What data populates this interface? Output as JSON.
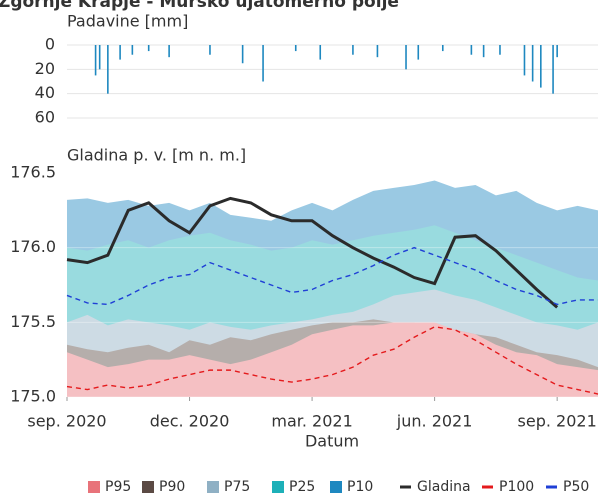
{
  "title": "Zgornje Krapje - Mursko ujatomerno polje",
  "chart_data": [
    {
      "type": "bar",
      "ylabel": "Padavine [mm]",
      "y_inverted": true,
      "ylim": [
        0,
        60
      ],
      "yticks": [
        0,
        20,
        40,
        60
      ],
      "xlim": [
        0,
        13
      ],
      "color": "#1e88c0",
      "x": [
        0.7,
        0.8,
        1.0,
        1.3,
        1.6,
        2.0,
        2.5,
        3.5,
        4.3,
        4.8,
        5.6,
        6.2,
        7.0,
        7.6,
        8.3,
        8.6,
        9.2,
        9.9,
        10.2,
        10.6,
        11.2,
        11.4,
        11.6,
        11.9,
        12.0
      ],
      "values": [
        25,
        20,
        40,
        12,
        8,
        5,
        10,
        8,
        15,
        30,
        5,
        12,
        8,
        10,
        20,
        12,
        5,
        8,
        10,
        8,
        25,
        30,
        35,
        40,
        10
      ]
    },
    {
      "type": "band-line",
      "ylabel": "Gladina p. v. [m n. m.]",
      "xlabel": "Datum",
      "ylim": [
        175.0,
        176.5
      ],
      "yticks": [
        {
          "value": 175.0,
          "label": "175.0"
        },
        175.5,
        {
          "value": 176.0,
          "label": "176.0"
        },
        176.5
      ],
      "xlim": [
        0,
        13
      ],
      "xticks": [
        {
          "value": 0,
          "label": "sep. 2020"
        },
        {
          "value": 3,
          "label": "dec. 2020"
        },
        {
          "value": 6,
          "label": "mar. 2021"
        },
        {
          "value": 9,
          "label": "jun. 2021"
        },
        {
          "value": 12,
          "label": "sep. 2021"
        }
      ],
      "x": [
        0,
        0.5,
        1,
        1.5,
        2,
        2.5,
        3,
        3.5,
        4,
        4.5,
        5,
        5.5,
        6,
        6.5,
        7,
        7.5,
        8,
        8.5,
        9,
        9.5,
        10,
        10.5,
        11,
        11.5,
        12,
        12.5,
        13
      ],
      "series": [
        {
          "name": "P95",
          "kind": "area",
          "color": "#e8737a",
          "values": [
            175.3,
            175.25,
            175.2,
            175.22,
            175.25,
            175.25,
            175.28,
            175.25,
            175.22,
            175.25,
            175.3,
            175.35,
            175.42,
            175.45,
            175.48,
            175.48,
            175.5,
            175.5,
            175.5,
            175.45,
            175.42,
            175.35,
            175.3,
            175.28,
            175.22,
            175.2,
            175.18
          ]
        },
        {
          "name": "P90",
          "kind": "area",
          "color": "#5b4a44",
          "values": [
            175.35,
            175.32,
            175.3,
            175.33,
            175.35,
            175.3,
            175.38,
            175.35,
            175.4,
            175.38,
            175.42,
            175.45,
            175.48,
            175.5,
            175.5,
            175.52,
            175.5,
            175.5,
            175.48,
            175.45,
            175.42,
            175.4,
            175.35,
            175.3,
            175.28,
            175.25,
            175.2
          ]
        },
        {
          "name": "P75",
          "kind": "area",
          "color": "#8fb0c4",
          "values": [
            175.5,
            175.55,
            175.48,
            175.52,
            175.5,
            175.48,
            175.45,
            175.5,
            175.47,
            175.45,
            175.48,
            175.5,
            175.52,
            175.55,
            175.57,
            175.62,
            175.68,
            175.7,
            175.72,
            175.68,
            175.65,
            175.6,
            175.55,
            175.5,
            175.48,
            175.45,
            175.5
          ]
        },
        {
          "name": "P25",
          "kind": "area",
          "color": "#1db0b8",
          "values": [
            176.0,
            175.98,
            176.02,
            176.05,
            176.0,
            176.05,
            176.08,
            176.1,
            176.05,
            176.02,
            175.98,
            176.0,
            176.05,
            176.02,
            176.05,
            176.08,
            176.1,
            176.12,
            176.15,
            176.1,
            176.05,
            176.0,
            175.95,
            175.9,
            175.85,
            175.8,
            175.78
          ]
        },
        {
          "name": "P10",
          "kind": "area",
          "color": "#1e88c0",
          "values": [
            176.32,
            176.33,
            176.3,
            176.32,
            176.28,
            176.3,
            176.25,
            176.3,
            176.22,
            176.2,
            176.18,
            176.25,
            176.3,
            176.25,
            176.32,
            176.38,
            176.4,
            176.42,
            176.45,
            176.4,
            176.42,
            176.35,
            176.38,
            176.3,
            176.25,
            176.28,
            176.25
          ]
        },
        {
          "name": "Gladina",
          "kind": "line",
          "style": "solid",
          "color": "#2b2b2b",
          "values": [
            175.92,
            175.9,
            175.95,
            176.25,
            176.3,
            176.18,
            176.1,
            176.28,
            176.33,
            176.3,
            176.22,
            176.18,
            176.18,
            176.08,
            176.0,
            175.93,
            175.87,
            175.8,
            175.76,
            176.07,
            176.08,
            175.98,
            175.85,
            175.72,
            175.6,
            null,
            null
          ]
        },
        {
          "name": "P100",
          "kind": "line",
          "style": "dashed",
          "color": "#e41a1c",
          "values": [
            175.07,
            175.05,
            175.08,
            175.06,
            175.08,
            175.12,
            175.15,
            175.18,
            175.18,
            175.15,
            175.12,
            175.1,
            175.12,
            175.15,
            175.2,
            175.28,
            175.32,
            175.4,
            175.47,
            175.45,
            175.38,
            175.3,
            175.22,
            175.15,
            175.08,
            175.05,
            175.02
          ]
        },
        {
          "name": "P50",
          "kind": "line",
          "style": "dashed",
          "color": "#1f3fd6",
          "values": [
            175.68,
            175.63,
            175.62,
            175.68,
            175.75,
            175.8,
            175.82,
            175.9,
            175.85,
            175.8,
            175.75,
            175.7,
            175.72,
            175.78,
            175.82,
            175.88,
            175.95,
            176.0,
            175.95,
            175.9,
            175.85,
            175.78,
            175.72,
            175.68,
            175.62,
            175.65,
            175.65
          ]
        }
      ]
    }
  ]
}
